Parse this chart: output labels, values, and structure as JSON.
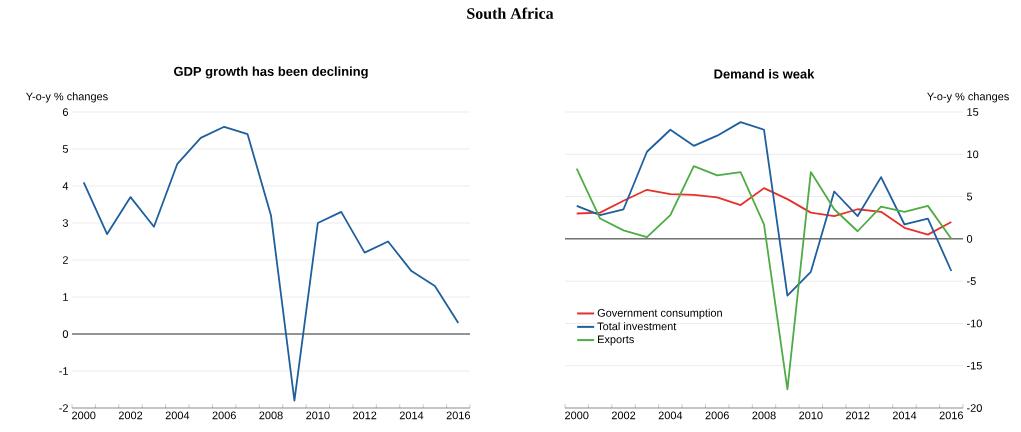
{
  "chart_data": [
    {
      "type": "line",
      "title": "GDP growth has been declining",
      "ylabel": "Y-o-y % changes",
      "annotations": [
        "South Africa"
      ],
      "categories": [
        "2000",
        null,
        "2002",
        null,
        "2004",
        null,
        "2006",
        null,
        "2008",
        null,
        "2010",
        null,
        "2012",
        null,
        "2014",
        null,
        "2016"
      ],
      "series": [
        {
          "color": "#1f5f9e",
          "values": [
            4.1,
            2.7,
            3.7,
            2.9,
            4.6,
            5.3,
            5.6,
            5.4,
            3.2,
            -1.8,
            3.0,
            3.3,
            2.2,
            2.5,
            1.7,
            1.3,
            0.3
          ]
        }
      ],
      "ylim": [
        -2,
        6
      ],
      "yticks": [
        -2,
        -1,
        0,
        1,
        2,
        3,
        4,
        5,
        6
      ],
      "grid": "y",
      "ref_lines": [
        {
          "axis": "y",
          "value": 0,
          "color": "#000000"
        }
      ]
    },
    {
      "type": "line",
      "title": "Demand is weak",
      "ylabel": "Y-o-y % changes",
      "categories": [
        "2000",
        null,
        "2002",
        null,
        "2004",
        null,
        "2006",
        null,
        "2008",
        null,
        "2010",
        null,
        "2012",
        null,
        "2014",
        null,
        "2016"
      ],
      "series": [
        {
          "name": "Government consumption",
          "color": "#e5302b",
          "values": [
            3.0,
            3.1,
            4.5,
            5.8,
            5.3,
            5.2,
            4.9,
            4.0,
            6.0,
            4.7,
            3.1,
            2.7,
            3.5,
            3.2,
            1.3,
            0.5,
            2.0
          ]
        },
        {
          "name": "Total investment",
          "color": "#1f5f9e",
          "values": [
            3.9,
            2.8,
            3.5,
            10.3,
            12.9,
            11.0,
            12.2,
            13.8,
            12.9,
            -6.7,
            -3.9,
            5.6,
            2.7,
            7.3,
            1.7,
            2.4,
            -3.8
          ]
        },
        {
          "name": "Exports",
          "color": "#4fab46",
          "values": [
            8.3,
            2.4,
            1.0,
            0.2,
            2.8,
            8.6,
            7.5,
            7.9,
            1.7,
            -17.8,
            7.9,
            3.5,
            0.9,
            3.8,
            3.2,
            3.9,
            0.0
          ]
        }
      ],
      "ylim": [
        -20,
        15
      ],
      "yticks": [
        -20,
        -15,
        -10,
        -5,
        0,
        5,
        10,
        15
      ],
      "grid": "y",
      "legend": "bottom left",
      "ref_lines": [
        {
          "axis": "y",
          "value": 0,
          "color": "#000000"
        }
      ]
    }
  ]
}
